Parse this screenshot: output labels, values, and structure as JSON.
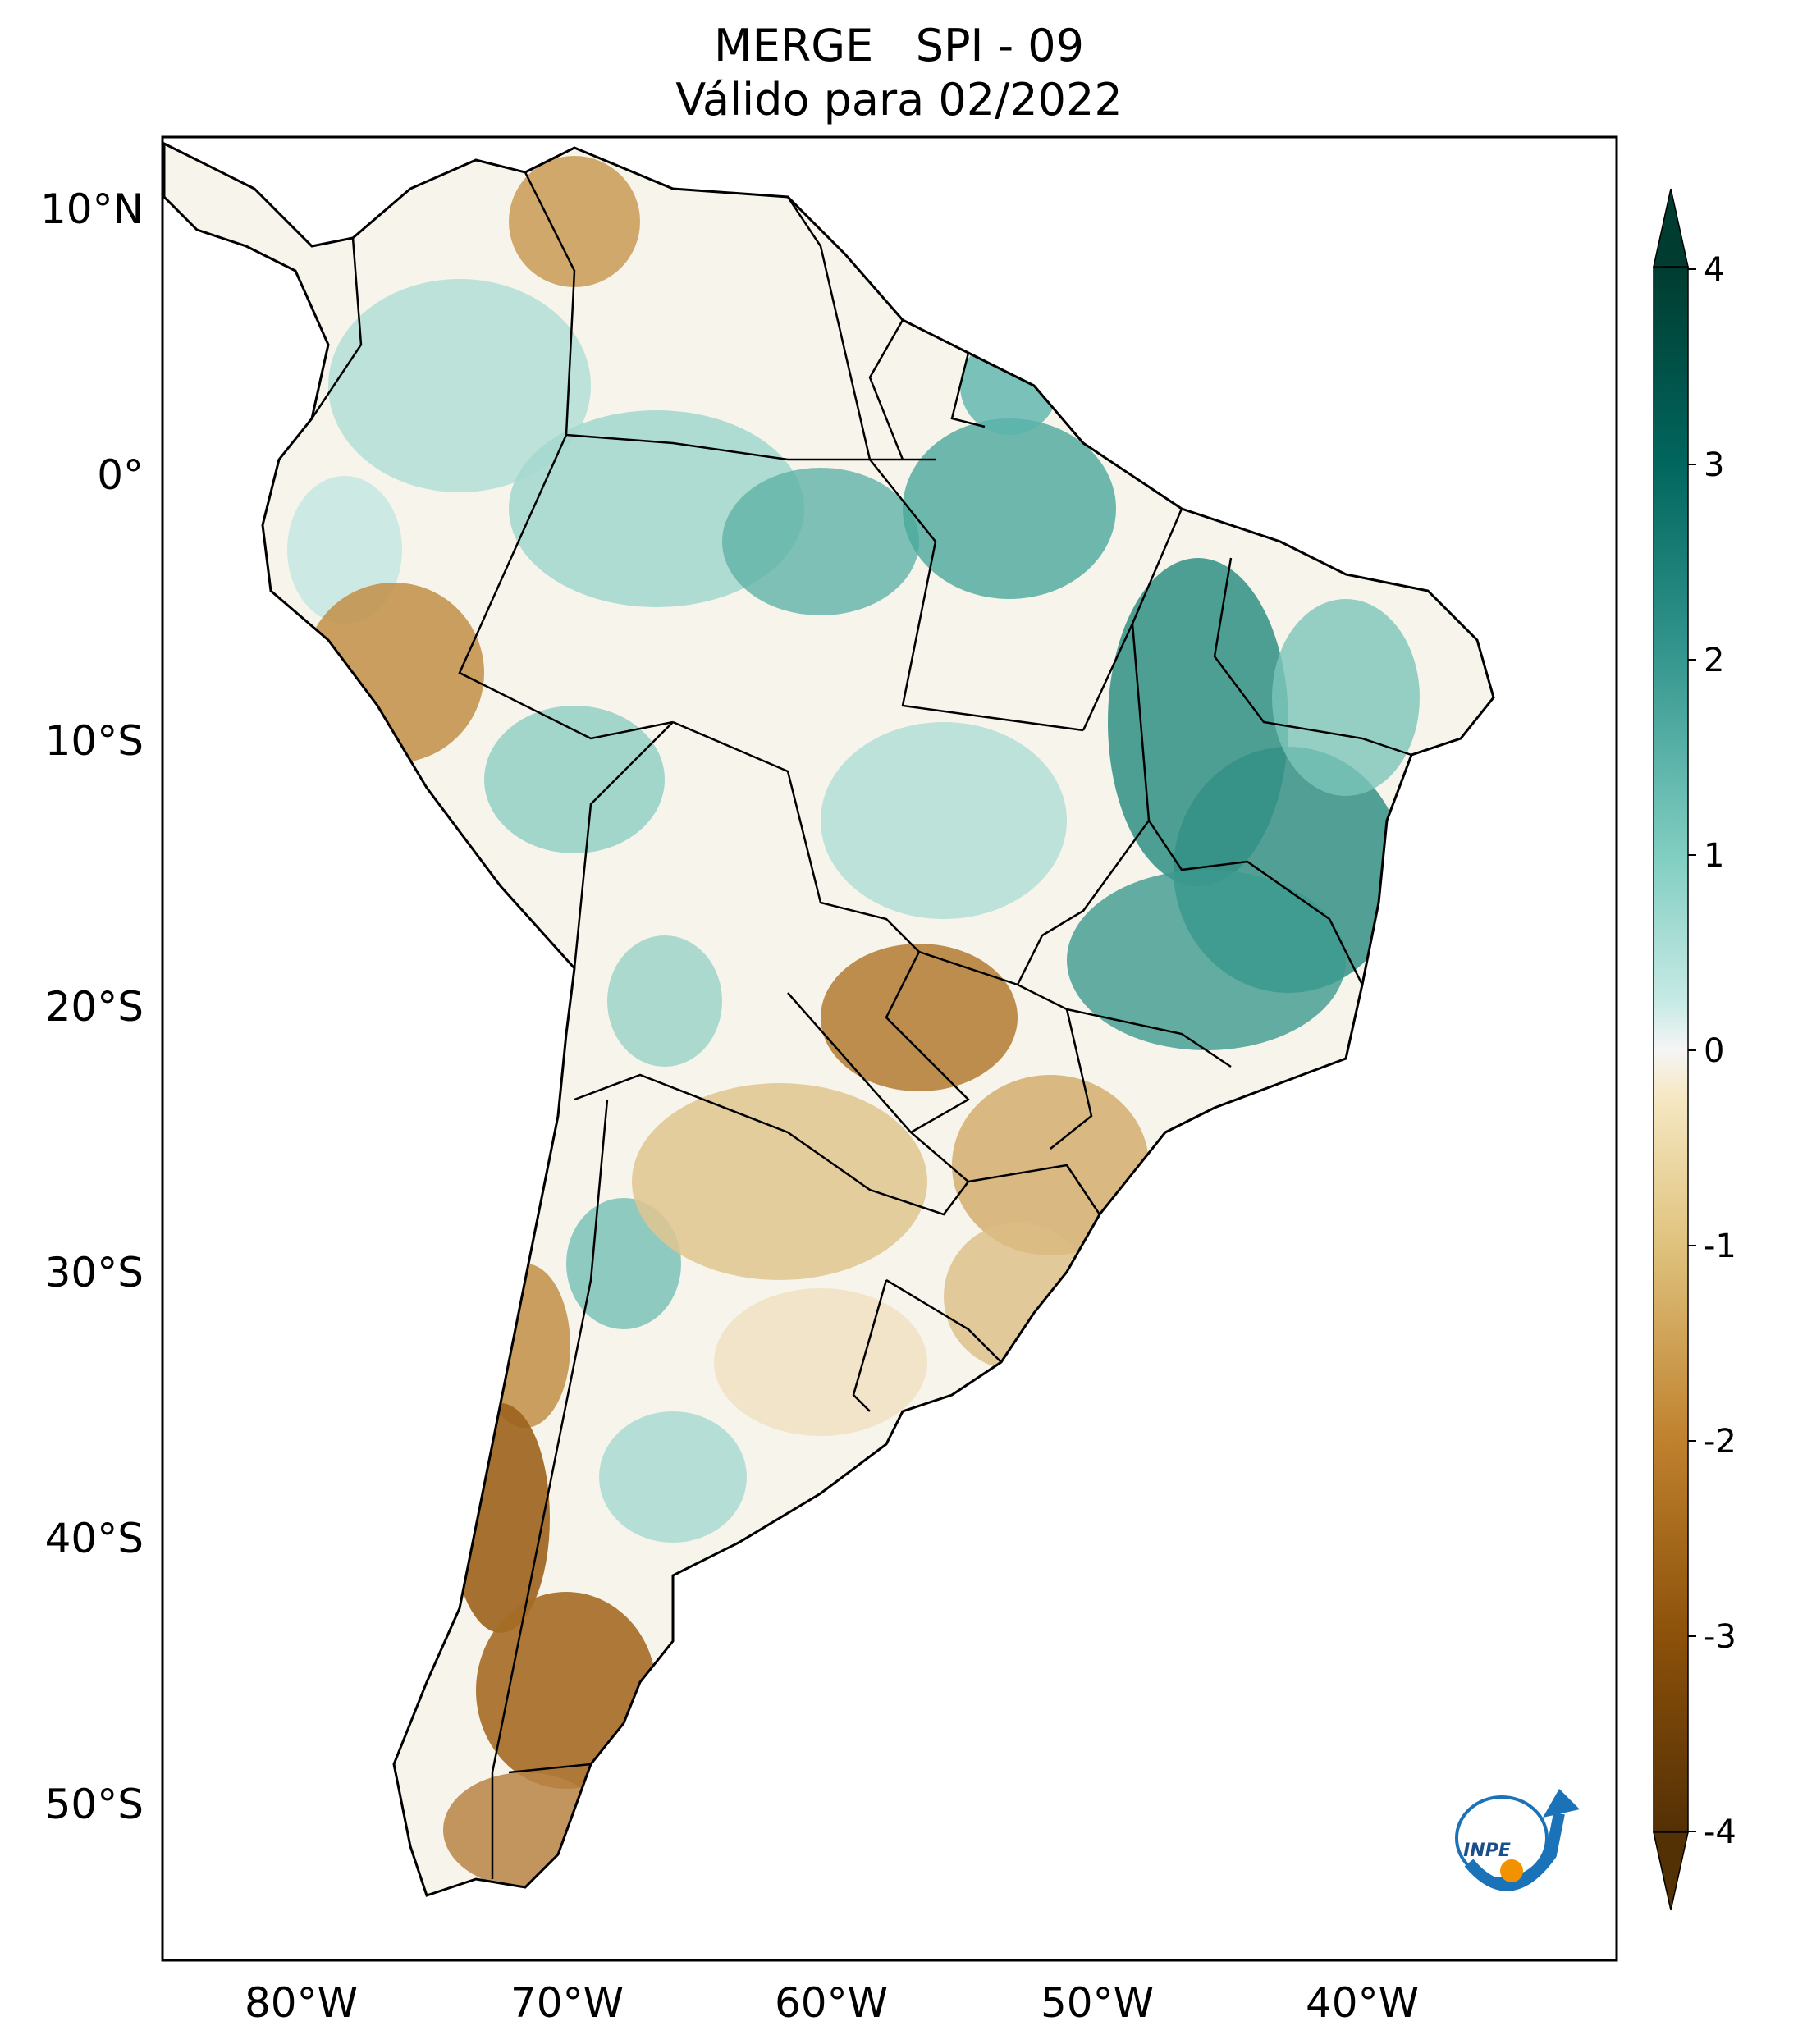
{
  "title": {
    "line1": "MERGE   SPI - 09",
    "line2": "Válido para 02/2022"
  },
  "axes": {
    "lat_ticks": [
      "10°N",
      "0°",
      "10°S",
      "20°S",
      "30°S",
      "40°S",
      "50°S"
    ],
    "lon_ticks": [
      "80°W",
      "70°W",
      "60°W",
      "50°W",
      "40°W"
    ]
  },
  "colorbar": {
    "ticks": [
      "4",
      "3",
      "2",
      "1",
      "0",
      "-1",
      "-2",
      "-3",
      "-4"
    ],
    "range": [
      -4,
      4
    ],
    "colormap": "BrBG",
    "extend": "both"
  },
  "logo": {
    "text": "INPE"
  },
  "colors": {
    "wet": "#01665e",
    "wet_mid": "#5ab4ac",
    "neutral": "#f5f5f5",
    "dry_mid": "#d8b365",
    "dry": "#8c510a",
    "border": "#000000",
    "logo_blue": "#1a73b8",
    "logo_orange": "#f39200"
  }
}
